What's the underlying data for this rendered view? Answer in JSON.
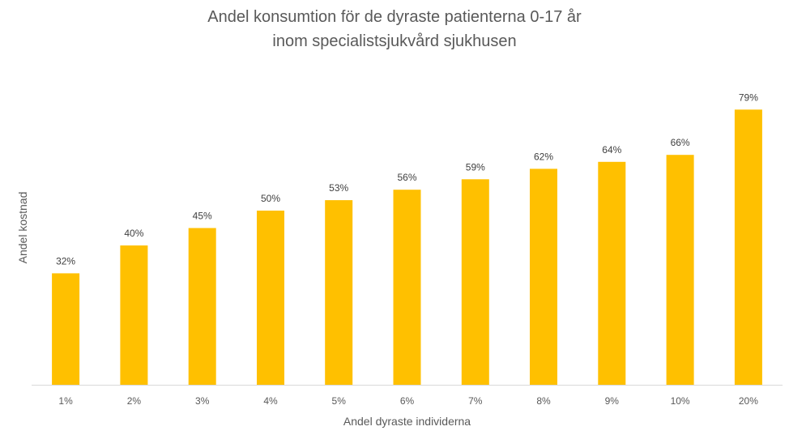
{
  "chart_data": {
    "type": "bar",
    "title": "Andel konsumtion för de dyraste patienterna 0-17 år inom specialistsjukvård sjukhusen",
    "title_lines": [
      "Andel konsumtion för de dyraste patienterna 0-17 år",
      "inom specialistsjukvård sjukhusen"
    ],
    "xlabel": "Andel dyraste individerna",
    "ylabel": "Andel kostnad",
    "categories": [
      "1%",
      "2%",
      "3%",
      "4%",
      "5%",
      "6%",
      "7%",
      "8%",
      "9%",
      "10%",
      "20%"
    ],
    "values": [
      32,
      40,
      45,
      50,
      53,
      56,
      59,
      62,
      64,
      66,
      79
    ],
    "value_labels": [
      "32%",
      "40%",
      "45%",
      "50%",
      "53%",
      "56%",
      "59%",
      "62%",
      "64%",
      "66%",
      "79%"
    ],
    "ylim": [
      0,
      100
    ],
    "grid": false,
    "legend": "none",
    "y_axis_visible": false,
    "bar_color": "#FFC000",
    "axis_color": "#D9D9D9"
  }
}
